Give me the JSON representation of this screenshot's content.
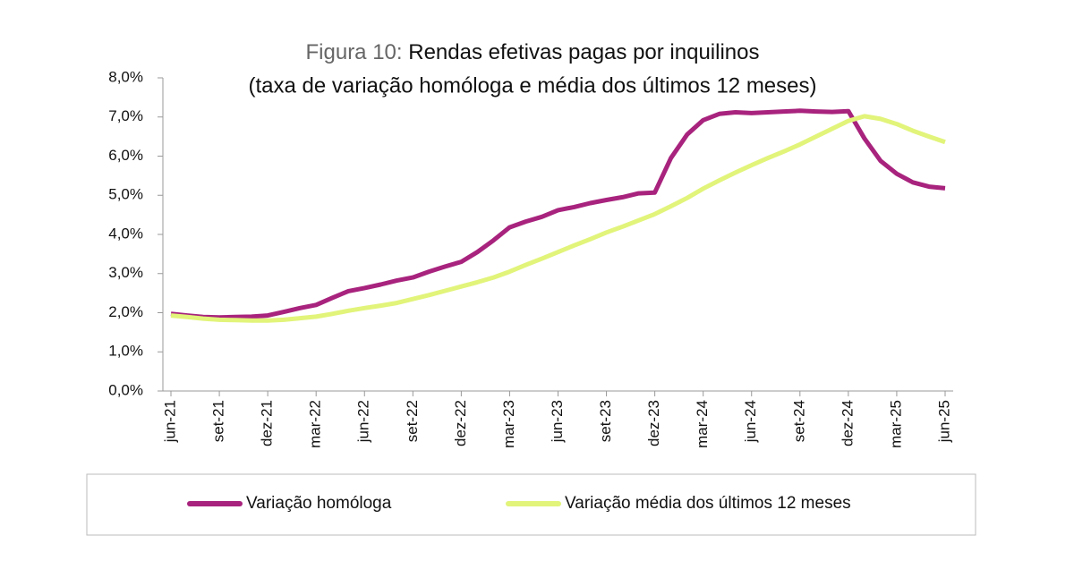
{
  "chart_data": {
    "type": "line",
    "figure_label": "Figura 10:",
    "title": "Rendas efetivas pagas por inquilinos",
    "subtitle": "(taxa de variação homóloga e média dos últimos 12 meses)",
    "categories": [
      "jun-21",
      null,
      null,
      "set-21",
      null,
      null,
      "dez-21",
      null,
      null,
      "mar-22",
      null,
      null,
      "jun-22",
      null,
      null,
      "set-22",
      null,
      null,
      "dez-22",
      null,
      null,
      "mar-23",
      null,
      null,
      "jun-23",
      null,
      null,
      "set-23",
      null,
      null,
      "dez-23",
      null,
      null,
      "mar-24",
      null,
      null,
      "jun-24",
      null,
      null,
      "set-24",
      null,
      null,
      "dez-24",
      null,
      null,
      "mar-25",
      null,
      null,
      "jun-25"
    ],
    "series": [
      {
        "name": "Variação homóloga",
        "color": "#a8237d",
        "values": [
          1.97,
          1.93,
          1.89,
          1.88,
          1.89,
          1.9,
          1.93,
          2.02,
          2.12,
          2.2,
          2.38,
          2.55,
          2.63,
          2.72,
          2.82,
          2.9,
          3.05,
          3.18,
          3.3,
          3.55,
          3.85,
          4.18,
          4.33,
          4.45,
          4.62,
          4.7,
          4.8,
          4.88,
          4.95,
          5.05,
          5.07,
          5.95,
          6.55,
          6.92,
          7.08,
          7.12,
          7.1,
          7.12,
          7.14,
          7.16,
          7.14,
          7.13,
          7.15,
          6.45,
          5.88,
          5.55,
          5.33,
          5.22,
          5.18
        ]
      },
      {
        "name": "Variação média dos últimos 12 meses",
        "color": "#e2f47a",
        "values": [
          1.93,
          1.89,
          1.85,
          1.82,
          1.81,
          1.8,
          1.8,
          1.82,
          1.86,
          1.9,
          1.97,
          2.05,
          2.12,
          2.18,
          2.25,
          2.35,
          2.45,
          2.56,
          2.67,
          2.78,
          2.9,
          3.05,
          3.22,
          3.38,
          3.55,
          3.72,
          3.88,
          4.05,
          4.2,
          4.36,
          4.52,
          4.72,
          4.93,
          5.17,
          5.38,
          5.58,
          5.77,
          5.95,
          6.12,
          6.3,
          6.5,
          6.7,
          6.9,
          7.02,
          6.95,
          6.82,
          6.65,
          6.5,
          6.36
        ]
      }
    ],
    "ylim": [
      0,
      8
    ],
    "yticks": [
      {
        "value": 0,
        "label": "0,0%"
      },
      {
        "value": 1,
        "label": "1,0%"
      },
      {
        "value": 2,
        "label": "2,0%"
      },
      {
        "value": 3,
        "label": "3,0%"
      },
      {
        "value": 4,
        "label": "4,0%"
      },
      {
        "value": 5,
        "label": "5,0%"
      },
      {
        "value": 6,
        "label": "6,0%"
      },
      {
        "value": 7,
        "label": "7,0%"
      },
      {
        "value": 8,
        "label": "8,0%"
      }
    ],
    "grid": false
  }
}
